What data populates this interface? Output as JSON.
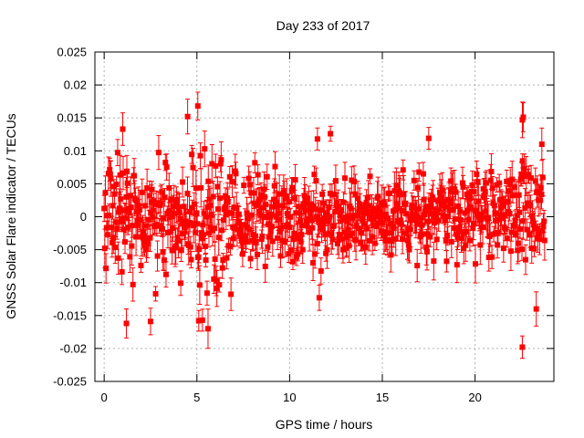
{
  "chart_data": {
    "type": "scatter",
    "title": "Day 233 of 2017",
    "xlabel": "GPS time / hours",
    "ylabel": "GNSS Solar Flare indicator / TECUs",
    "xlim": [
      -0.5,
      24.25
    ],
    "ylim": [
      -0.025,
      0.025
    ],
    "x_ticks": [
      0,
      5,
      10,
      15,
      20
    ],
    "x_tick_labels": [
      "0",
      "5",
      "10",
      "15",
      "20"
    ],
    "y_ticks": [
      -0.025,
      -0.02,
      -0.015,
      -0.01,
      -0.005,
      0,
      0.005,
      0.01,
      0.015,
      0.02,
      0.025
    ],
    "y_tick_labels": [
      "-0.025",
      "-0.02",
      "-0.015",
      "-0.01",
      "-0.005",
      "0",
      "0.005",
      "0.01",
      "0.015",
      "0.02",
      "0.025"
    ],
    "grid": true,
    "series_color": "#ff0000",
    "x_start": 0.0,
    "x_end": 23.75,
    "n_points": 720,
    "noise_envelope": {
      "hours": [
        0,
        2,
        3,
        4,
        4.5,
        5,
        5.5,
        6,
        6.5,
        7,
        8,
        10,
        12,
        15,
        18,
        21,
        22,
        22.5,
        23,
        23.75
      ],
      "sigma": [
        0.0045,
        0.0045,
        0.0042,
        0.0055,
        0.0065,
        0.0075,
        0.007,
        0.0065,
        0.0055,
        0.0048,
        0.004,
        0.0037,
        0.0038,
        0.0035,
        0.0036,
        0.004,
        0.0045,
        0.005,
        0.0048,
        0.0045
      ]
    },
    "error_bar_halfwidth_range": [
      0.001,
      0.003
    ],
    "notable_points": [
      {
        "x": 1.0,
        "y": 0.0133
      },
      {
        "x": 1.2,
        "y": -0.0162
      },
      {
        "x": 2.5,
        "y": -0.0159
      },
      {
        "x": 4.5,
        "y": 0.0152
      },
      {
        "x": 5.05,
        "y": 0.0168
      },
      {
        "x": 5.1,
        "y": -0.0158
      },
      {
        "x": 5.3,
        "y": -0.0157
      },
      {
        "x": 5.6,
        "y": -0.017
      },
      {
        "x": 11.5,
        "y": 0.0118
      },
      {
        "x": 11.6,
        "y": -0.0123
      },
      {
        "x": 12.2,
        "y": 0.0126
      },
      {
        "x": 17.5,
        "y": 0.0119
      },
      {
        "x": 22.55,
        "y": 0.0147
      },
      {
        "x": 22.6,
        "y": 0.0151
      },
      {
        "x": 22.55,
        "y": -0.0198
      },
      {
        "x": 23.3,
        "y": -0.014
      },
      {
        "x": 23.6,
        "y": 0.011
      }
    ]
  }
}
